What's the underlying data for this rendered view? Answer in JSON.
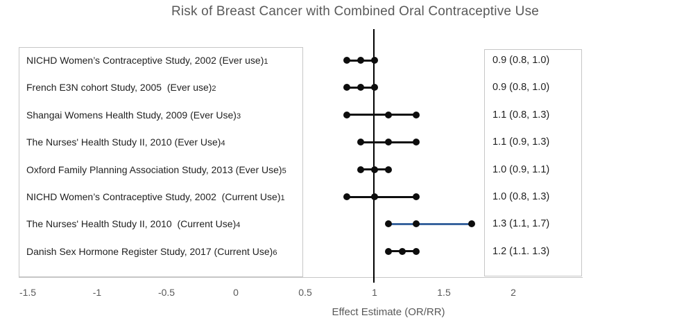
{
  "chart_data": {
    "type": "scatter",
    "subtype": "forest-plot",
    "title": "Risk of Breast Cancer with Combined Oral Contraceptive Use",
    "xlabel": "Effect Estimate (OR/RR)",
    "xlim": [
      -1.75,
      2.4
    ],
    "x_ticks": [
      -1.5,
      -1,
      -0.5,
      0,
      0.5,
      1,
      1.5,
      2
    ],
    "x_tick_labels": [
      "-1.5",
      "-1",
      "-0.5",
      "0",
      "0.5",
      "1",
      "1.5",
      "2"
    ],
    "reference_line_x": 1,
    "grid": false,
    "legend": false,
    "studies": [
      {
        "label": "NICHD Women’s Contraceptive Study, 2002 (Ever use)",
        "ref": "1",
        "estimate": 0.9,
        "ci_low": 0.8,
        "ci_high": 1.0,
        "value_text": "0.9 (0.8, 1.0)",
        "line_color": "#0d0d0d"
      },
      {
        "label": "French E3N cohort Study, 2005  (Ever use)",
        "ref": "2",
        "estimate": 0.9,
        "ci_low": 0.8,
        "ci_high": 1.0,
        "value_text": "0.9 (0.8, 1.0)",
        "line_color": "#0d0d0d"
      },
      {
        "label": "Shangai Womens Health Study, 2009 (Ever Use)",
        "ref": "3",
        "estimate": 1.1,
        "ci_low": 0.8,
        "ci_high": 1.3,
        "value_text": "1.1 (0.8, 1.3)",
        "line_color": "#0d0d0d"
      },
      {
        "label": "The Nurses' Health Study II, 2010 (Ever Use)",
        "ref": "4",
        "estimate": 1.1,
        "ci_low": 0.9,
        "ci_high": 1.3,
        "value_text": "1.1 (0.9, 1.3)",
        "line_color": "#0d0d0d"
      },
      {
        "label": "Oxford Family Planning Association Study, 2013 (Ever Use)",
        "ref": "5",
        "estimate": 1.0,
        "ci_low": 0.9,
        "ci_high": 1.1,
        "value_text": "1.0 (0.9, 1.1)",
        "line_color": "#0d0d0d"
      },
      {
        "label": "NICHD Women’s Contraceptive Study, 2002  (Current Use)",
        "ref": "1",
        "estimate": 1.0,
        "ci_low": 0.8,
        "ci_high": 1.3,
        "value_text": "1.0 (0.8, 1.3)",
        "line_color": "#0d0d0d"
      },
      {
        "label": "The Nurses' Health Study II, 2010  (Current Use)",
        "ref": "4",
        "estimate": 1.3,
        "ci_low": 1.1,
        "ci_high": 1.7,
        "value_text": "1.3 (1.1, 1.7)",
        "line_color": "#38649e"
      },
      {
        "label": "Danish Sex Hormone Register Study, 2017 (Current Use)",
        "ref": "6",
        "estimate": 1.2,
        "ci_low": 1.1,
        "ci_high": 1.3,
        "value_text": "1.2 (1.1. 1.3)",
        "line_color": "#0d0d0d"
      }
    ]
  },
  "colors": {
    "title_text": "#595959",
    "label_text": "#1f1f1f",
    "axis_text": "#595959",
    "box_border": "#c6c6c6",
    "axis_line": "#c6c6c6",
    "reference_line": "#000000",
    "marker": "#0d0d0d",
    "highlight_line": "#38649e"
  }
}
